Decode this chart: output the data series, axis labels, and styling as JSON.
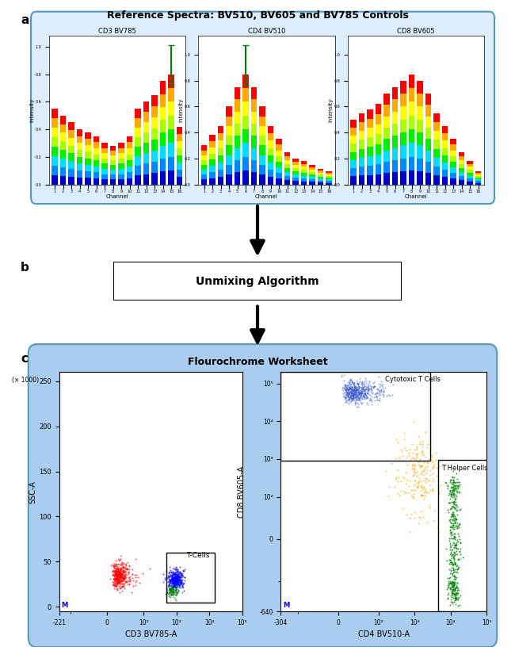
{
  "title_a": "Reference Spectra: BV510, BV605 and BV785 Controls",
  "label_a": "a",
  "label_b": "b",
  "label_c": "c",
  "panel_a_titles": [
    "CD3 BV785",
    "CD4 BV510",
    "CD8 BV605"
  ],
  "xlabel": "Channel",
  "ylabel": "Intensity",
  "channels": [
    1,
    2,
    3,
    4,
    5,
    6,
    7,
    8,
    9,
    10,
    11,
    12,
    13,
    14,
    15,
    16
  ],
  "bv785_values": [
    0.55,
    0.5,
    0.45,
    0.4,
    0.38,
    0.35,
    0.3,
    0.28,
    0.3,
    0.35,
    0.55,
    0.6,
    0.65,
    0.75,
    0.8,
    0.42
  ],
  "bv510_values": [
    0.3,
    0.38,
    0.45,
    0.6,
    0.75,
    0.85,
    0.75,
    0.6,
    0.45,
    0.35,
    0.25,
    0.2,
    0.18,
    0.15,
    0.12,
    0.1
  ],
  "bv605_values": [
    0.5,
    0.55,
    0.58,
    0.62,
    0.7,
    0.75,
    0.8,
    0.85,
    0.8,
    0.7,
    0.55,
    0.45,
    0.35,
    0.25,
    0.18,
    0.1
  ],
  "bar_colors": [
    "#0000cc",
    "#0088ff",
    "#00ddff",
    "#00ee00",
    "#aaff00",
    "#ffff00",
    "#ffaa00",
    "#ff0000"
  ],
  "unmixing_text": "Unmixing Algorithm",
  "worksheet_title": "Flourochrome Worksheet",
  "scatter1_xlabel": "CD3 BV785-A",
  "scatter1_ylabel": "SSC-A",
  "scatter1_ylabel2": "(× 1000)",
  "scatter2_xlabel": "CD4 BV510-A",
  "scatter2_ylabel": "CD8 BV605-A",
  "tcells_label": "T-Cells",
  "cytotoxic_label": "Cytotoxic T Cells",
  "thelper_label": "T Helper Cells",
  "panel_a_bg": "#ddeeff",
  "panel_c_bg": "#aaccee",
  "arrow_color": "#111111",
  "box_edge_color": "#5599bb"
}
